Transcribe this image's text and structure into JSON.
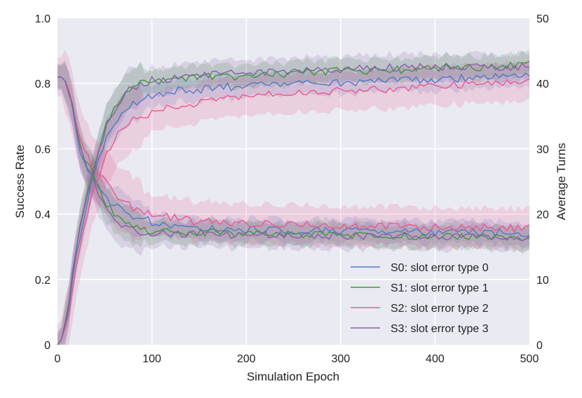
{
  "chart_data": {
    "type": "line",
    "title": "",
    "xlabel": "Simulation Epoch",
    "ylabel_left": "Success Rate",
    "ylabel_right": "Average Turns",
    "xlim": [
      0,
      500
    ],
    "ylim_left": [
      0,
      1.0
    ],
    "ylim_right": [
      0,
      50
    ],
    "x_ticks": [
      0,
      100,
      200,
      300,
      400,
      500
    ],
    "y_left_ticks": [
      0,
      0.2,
      0.4,
      0.6,
      0.8,
      1.0
    ],
    "y_left_tick_labels": [
      "0",
      "0.2",
      "0.4",
      "0.6",
      "0.8",
      "1.0"
    ],
    "y_right_ticks": [
      0,
      10,
      20,
      30,
      40,
      50
    ],
    "grid": true,
    "legend_position": "bottom-right",
    "colors": {
      "S0": "#4c7cc7",
      "S1": "#3a9a3a",
      "S2": "#f0578c",
      "S3": "#8a5fa8",
      "plot_background": "#eaeaf2",
      "grid": "#ffffff"
    },
    "x": [
      0,
      5,
      10,
      15,
      20,
      25,
      30,
      35,
      40,
      45,
      50,
      55,
      60,
      65,
      70,
      75,
      80,
      90,
      100,
      110,
      125,
      150,
      175,
      200,
      250,
      300,
      350,
      400,
      450,
      500
    ],
    "series": [
      {
        "name": "S0: slot error type 0",
        "key": "S0",
        "success_rate": [
          0.0,
          0.02,
          0.08,
          0.17,
          0.27,
          0.35,
          0.42,
          0.48,
          0.53,
          0.58,
          0.62,
          0.65,
          0.68,
          0.7,
          0.72,
          0.73,
          0.74,
          0.75,
          0.76,
          0.77,
          0.78,
          0.78,
          0.79,
          0.79,
          0.8,
          0.8,
          0.81,
          0.81,
          0.82,
          0.82
        ],
        "average_turns": [
          41,
          41,
          40,
          37,
          33,
          29,
          27,
          26,
          25,
          24,
          23,
          22,
          21.5,
          21,
          20.5,
          20,
          19.8,
          19.3,
          18.8,
          18.3,
          17.9,
          17.7,
          17.6,
          17.6,
          17.5,
          17.4,
          17.3,
          17.3,
          17.2,
          17.1
        ],
        "band": 0.035
      },
      {
        "name": "S1: slot error type 1",
        "key": "S1",
        "success_rate": [
          0.0,
          0.02,
          0.1,
          0.2,
          0.3,
          0.38,
          0.45,
          0.51,
          0.56,
          0.61,
          0.66,
          0.7,
          0.73,
          0.75,
          0.77,
          0.78,
          0.79,
          0.8,
          0.8,
          0.81,
          0.81,
          0.82,
          0.82,
          0.82,
          0.83,
          0.84,
          0.84,
          0.85,
          0.85,
          0.86
        ],
        "average_turns": [
          41,
          41,
          40,
          37,
          33,
          30,
          28,
          27,
          25,
          23.5,
          22,
          21,
          20,
          19.2,
          18.6,
          18.2,
          17.9,
          17.6,
          17.5,
          17.4,
          17.3,
          17.2,
          17.1,
          17.0,
          16.9,
          16.8,
          16.7,
          16.6,
          16.5,
          16.4
        ],
        "band": 0.035
      },
      {
        "name": "S2: slot error type 2",
        "key": "S2",
        "success_rate": [
          0.0,
          0.02,
          0.07,
          0.15,
          0.24,
          0.31,
          0.38,
          0.44,
          0.49,
          0.53,
          0.57,
          0.6,
          0.63,
          0.65,
          0.67,
          0.68,
          0.69,
          0.7,
          0.71,
          0.72,
          0.73,
          0.74,
          0.75,
          0.76,
          0.77,
          0.78,
          0.78,
          0.79,
          0.8,
          0.81
        ],
        "average_turns": [
          41,
          41,
          40,
          37.5,
          34,
          31,
          29,
          28,
          27,
          26,
          25,
          24,
          23.3,
          22.7,
          22,
          21.5,
          21,
          20.5,
          20.2,
          19.8,
          19.3,
          18.9,
          18.8,
          18.6,
          18.4,
          18.3,
          18.1,
          18.0,
          17.9,
          17.8
        ],
        "band": 0.06
      },
      {
        "name": "S3: slot error type 3",
        "key": "S3",
        "success_rate": [
          0.0,
          0.02,
          0.09,
          0.19,
          0.29,
          0.37,
          0.44,
          0.5,
          0.55,
          0.6,
          0.65,
          0.69,
          0.72,
          0.74,
          0.76,
          0.78,
          0.79,
          0.8,
          0.81,
          0.81,
          0.82,
          0.82,
          0.83,
          0.83,
          0.84,
          0.84,
          0.85,
          0.85,
          0.85,
          0.85
        ],
        "average_turns": [
          41,
          41,
          40,
          37,
          33,
          29.5,
          27.5,
          26,
          24.5,
          23,
          21.5,
          20.5,
          19.5,
          18.8,
          18.2,
          17.8,
          17.5,
          17.3,
          17.2,
          17.1,
          17.0,
          17.0,
          16.9,
          16.9,
          16.8,
          16.7,
          16.7,
          16.6,
          16.5,
          16.5
        ],
        "band": 0.04
      }
    ]
  }
}
